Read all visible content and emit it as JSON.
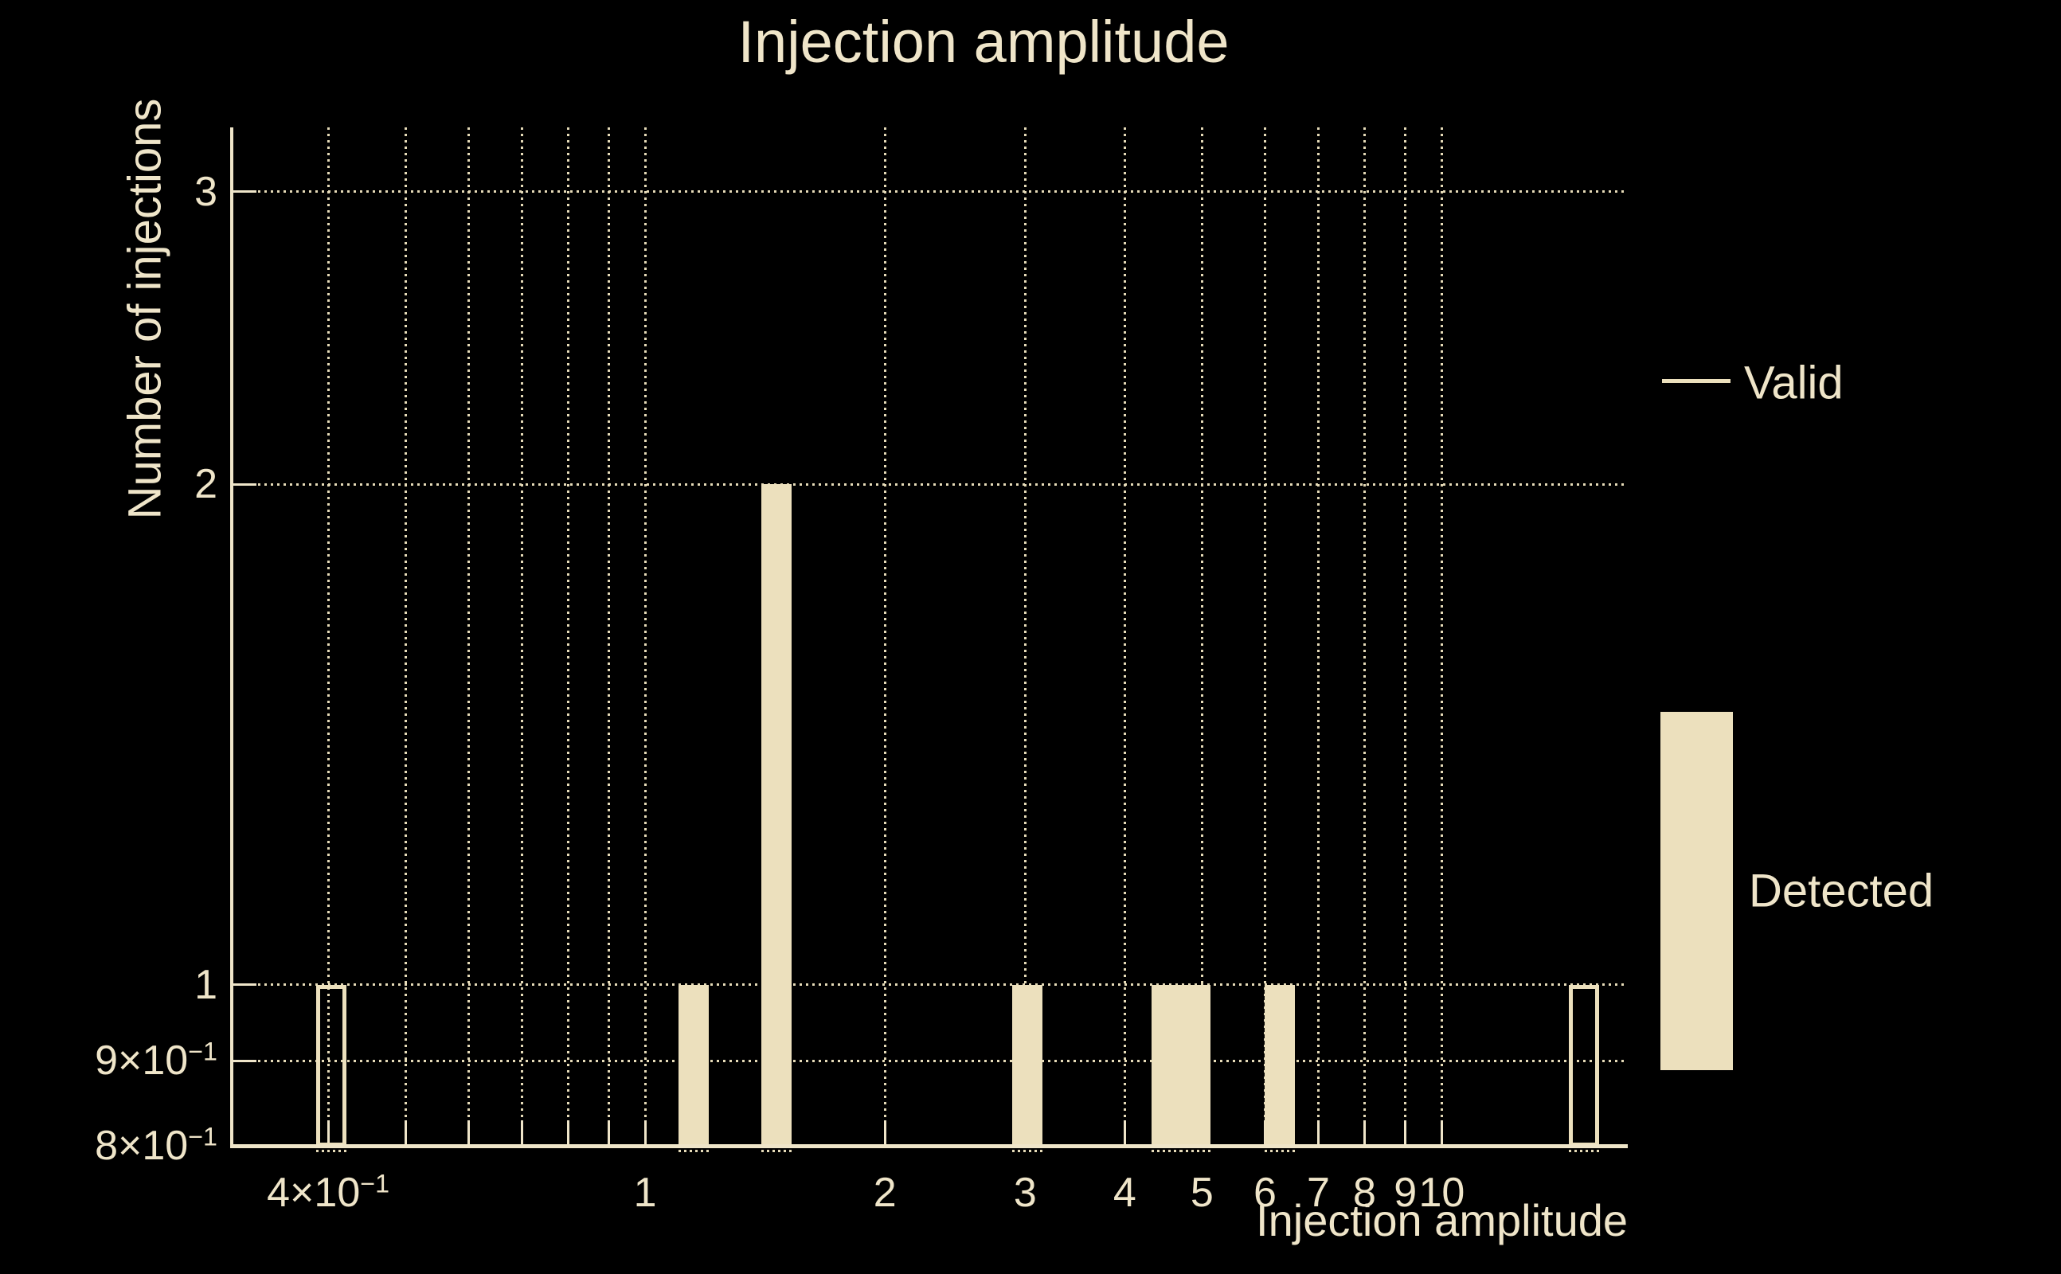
{
  "colors": {
    "background": "#000000",
    "foreground": "#efe5c9",
    "bar_fill": "#ece0bd",
    "grid_line": "#e6dbb8"
  },
  "legend": {
    "items": [
      {
        "label": "Valid",
        "swatch": "line"
      },
      {
        "label": "Detected",
        "swatch": "patch"
      }
    ]
  },
  "chart_data": {
    "type": "bar",
    "title": "Injection amplitude",
    "xlabel": "Injection amplitude",
    "ylabel": "Number of injections",
    "x_scale": "log",
    "y_scale": "log",
    "x_range": [
      0.3034,
      17.12
    ],
    "y_range": [
      0.8,
      3.28
    ],
    "grid": true,
    "legend_position": "right",
    "bin_width_decades": 0.038,
    "x_ticks": [
      {
        "v": 0.4,
        "base": "4×10",
        "exp": "−1"
      },
      {
        "v": 0.5,
        "minor": true
      },
      {
        "v": 0.6,
        "minor": true
      },
      {
        "v": 0.7,
        "minor": true
      },
      {
        "v": 0.8,
        "minor": true
      },
      {
        "v": 0.9,
        "minor": true
      },
      {
        "v": 1,
        "label": "1"
      },
      {
        "v": 2,
        "label": "2"
      },
      {
        "v": 3,
        "label": "3"
      },
      {
        "v": 4,
        "label": "4"
      },
      {
        "v": 5,
        "label": "5"
      },
      {
        "v": 6,
        "label": "6"
      },
      {
        "v": 7,
        "label": "7"
      },
      {
        "v": 8,
        "label": "8"
      },
      {
        "v": 9,
        "label": "9"
      },
      {
        "v": 10,
        "label": "10"
      }
    ],
    "y_ticks": [
      {
        "v": 3,
        "label": "3"
      },
      {
        "v": 2,
        "label": "2"
      },
      {
        "v": 1,
        "label": "1"
      },
      {
        "v": 0.9,
        "base": "9×10",
        "exp": "−1"
      },
      {
        "v": 0.8,
        "base": "8×10",
        "exp": "−1",
        "grid": false
      }
    ],
    "series": [
      {
        "name": "Valid",
        "style": "outline",
        "data": [
          {
            "x": 0.404,
            "y": 1
          },
          {
            "x": 15.1,
            "y": 1
          }
        ]
      },
      {
        "name": "Detected",
        "style": "fill",
        "data": [
          {
            "x": 1.15,
            "y": 1
          },
          {
            "x": 1.46,
            "y": 2
          },
          {
            "x": 3.02,
            "y": 1
          },
          {
            "x": 4.52,
            "y": 1
          },
          {
            "x": 4.9,
            "y": 1
          },
          {
            "x": 6.26,
            "y": 1
          }
        ]
      }
    ]
  }
}
